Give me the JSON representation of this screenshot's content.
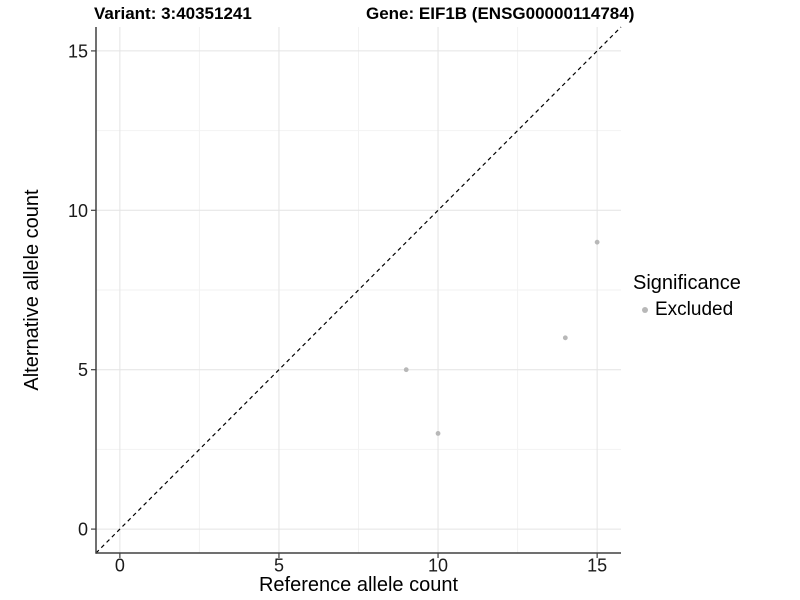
{
  "header": {
    "variant_title": "Variant: 3:40351241",
    "gene_title": "Gene: EIF1B (ENSG00000114784)"
  },
  "legend": {
    "title": "Significance",
    "items": [
      {
        "label": "Excluded",
        "color": "#b8b8b8"
      }
    ]
  },
  "chart_data": {
    "type": "scatter",
    "title": "Variant: 3:40351241   Gene: EIF1B (ENSG00000114784)",
    "xlabel": "Reference allele count",
    "ylabel": "Alternative allele count",
    "xlim": [
      -0.75,
      15.75
    ],
    "ylim": [
      -0.75,
      15.75
    ],
    "x_ticks": [
      0,
      5,
      10,
      15
    ],
    "y_ticks": [
      0,
      5,
      10,
      15
    ],
    "x_minor_ticks": [
      2.5,
      7.5,
      12.5
    ],
    "y_minor_ticks": [
      2.5,
      7.5,
      12.5
    ],
    "grid": true,
    "legend_position": "right",
    "reference_line": {
      "equation": "y = x",
      "style": "dashed",
      "color": "#000000"
    },
    "series": [
      {
        "name": "Excluded",
        "color": "#b8b8b8",
        "points": [
          [
            9,
            5
          ],
          [
            10,
            3
          ],
          [
            14,
            6
          ],
          [
            15,
            9
          ]
        ]
      }
    ]
  },
  "colors": {
    "background": "#ffffff",
    "grid_major": "#e4e4e4",
    "grid_minor": "#f2f2f2",
    "axis_line": "#404040",
    "tick_label": "#1a1a1a",
    "point": "#b8b8b8",
    "dashed_line": "#000000"
  }
}
